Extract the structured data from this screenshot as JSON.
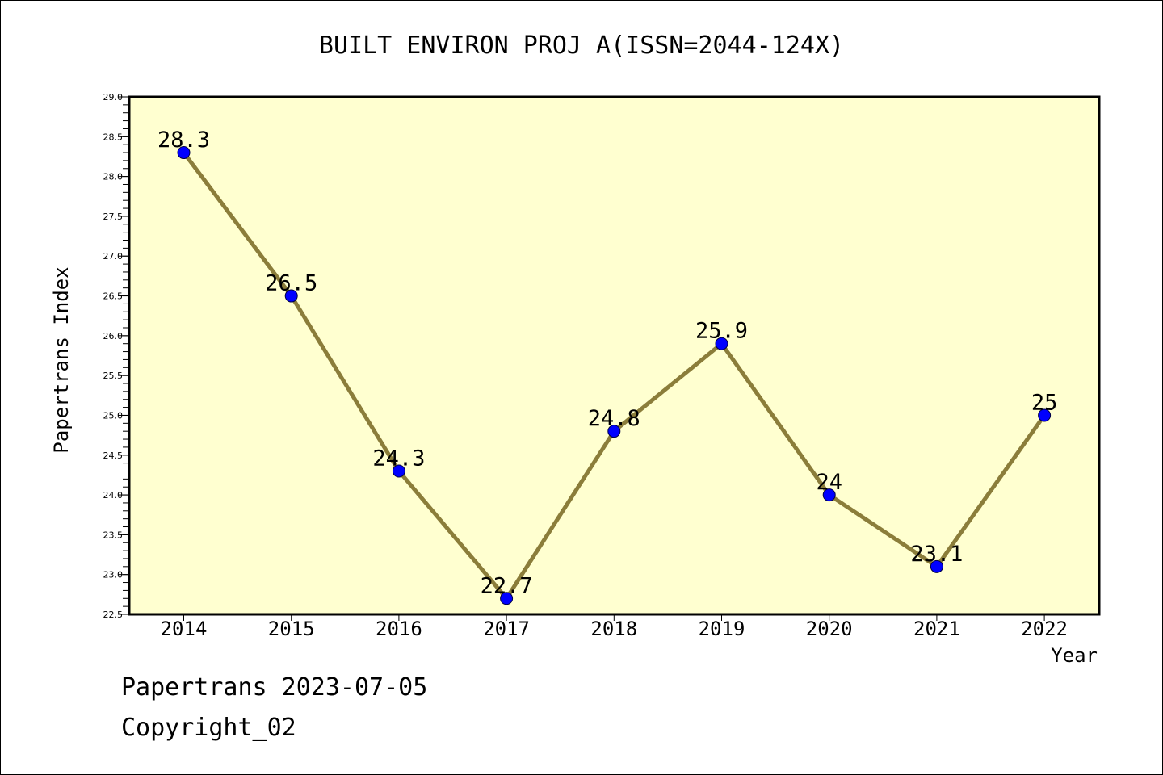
{
  "chart_data": {
    "type": "line",
    "title": "BUILT ENVIRON PROJ A(ISSN=2044-124X)",
    "xlabel": "Year",
    "ylabel": "Papertrans Index",
    "categories": [
      "2014",
      "2015",
      "2016",
      "2017",
      "2018",
      "2019",
      "2020",
      "2021",
      "2022"
    ],
    "values": [
      28.3,
      26.5,
      24.3,
      22.7,
      24.8,
      25.9,
      24.0,
      23.1,
      25.0
    ],
    "data_labels": [
      "28.3",
      "26.5",
      "24.3",
      "22.7",
      "24.8",
      "25.9",
      "24",
      "23.1",
      "25"
    ],
    "ylim": [
      22.5,
      29.0
    ],
    "yticks": [
      "22.5",
      "23.0",
      "23.5",
      "24.0",
      "24.5",
      "25.0",
      "25.5",
      "26.0",
      "26.5",
      "27.0",
      "27.5",
      "28.0",
      "28.5",
      "29.0"
    ],
    "grid": false,
    "legend": "none",
    "colors": {
      "plot_background": "#ffffd0",
      "line": "#8b7d3a",
      "marker": "#0000ff"
    }
  },
  "footer": {
    "line1": "Papertrans 2023-07-05",
    "line2": "Copyright_02"
  }
}
